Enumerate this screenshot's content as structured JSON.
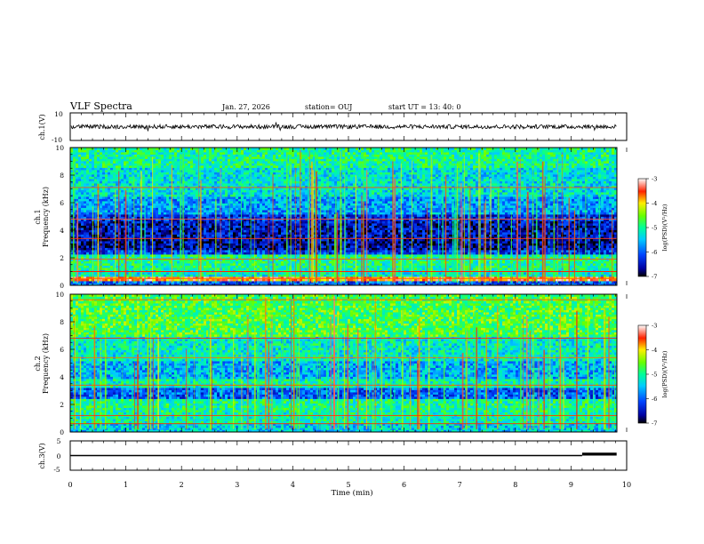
{
  "header": {
    "title": "VLF Spectra",
    "date": "Jan. 27, 2026",
    "station": "station= OUJ",
    "start": "start  UT  =   13: 40: 0"
  },
  "chart_data": [
    {
      "type": "line",
      "id": "ch1_waveform",
      "ylabel": "ch.1(V)",
      "ylim": [
        -10,
        10
      ],
      "yticks": [
        "10",
        "-10"
      ],
      "xlim": [
        0,
        10
      ],
      "series": [
        {
          "name": "ch.1",
          "mean": 0,
          "amplitude": 1.5
        }
      ]
    },
    {
      "type": "heatmap",
      "id": "ch1_spectrogram",
      "ylabel_channel": "ch.1",
      "ylabel": "Frequency (kHz)",
      "ylim": [
        0,
        10
      ],
      "yticks": [
        "0",
        "2",
        "4",
        "6",
        "8",
        "10"
      ],
      "xlim": [
        0,
        10
      ],
      "colorbar": {
        "label": "log(PSD)(V²/Hz)",
        "range": [
          -7,
          -3
        ],
        "ticks": [
          "-3",
          "-4",
          "-5",
          "-6",
          "-7"
        ]
      },
      "bands": [
        {
          "from": 0,
          "to": 0.3,
          "level": -6.0
        },
        {
          "from": 0.3,
          "to": 0.6,
          "level": -3.6
        },
        {
          "from": 0.6,
          "to": 1.2,
          "level": -5.2
        },
        {
          "from": 1.2,
          "to": 2.2,
          "level": -5.0
        },
        {
          "from": 2.2,
          "to": 2.6,
          "level": -6.2
        },
        {
          "from": 2.6,
          "to": 3.4,
          "level": -6.6
        },
        {
          "from": 3.4,
          "to": 4.6,
          "level": -6.5
        },
        {
          "from": 4.6,
          "to": 5.2,
          "level": -6.3
        },
        {
          "from": 5.2,
          "to": 6.5,
          "level": -5.7
        },
        {
          "from": 6.5,
          "to": 8.5,
          "level": -5.3
        },
        {
          "from": 8.5,
          "to": 10,
          "level": -5.0
        }
      ],
      "tone_lines_khz": [
        0.5,
        1.0,
        1.9,
        3.4,
        4.8,
        7.1
      ],
      "sferics": "vertical impulsive broadband streaks across full time range"
    },
    {
      "type": "heatmap",
      "id": "ch2_spectrogram",
      "ylabel_channel": "ch.2",
      "ylabel": "Frequency (kHz)",
      "ylim": [
        0,
        10
      ],
      "yticks": [
        "0",
        "2",
        "4",
        "6",
        "8",
        "10"
      ],
      "xlim": [
        0,
        10
      ],
      "colorbar": {
        "label": "log(PSD)(V²/Hz)",
        "range": [
          -7,
          -3
        ],
        "ticks": [
          "-3",
          "-4",
          "-5",
          "-6",
          "-7"
        ]
      },
      "bands": [
        {
          "from": 0,
          "to": 0.6,
          "level": -5.4
        },
        {
          "from": 0.6,
          "to": 1.4,
          "level": -5.1
        },
        {
          "from": 1.4,
          "to": 2.4,
          "level": -5.0
        },
        {
          "from": 2.4,
          "to": 3.2,
          "level": -6.0
        },
        {
          "from": 3.2,
          "to": 3.8,
          "level": -5.1
        },
        {
          "from": 3.8,
          "to": 5.2,
          "level": -5.6
        },
        {
          "from": 5.2,
          "to": 7.0,
          "level": -5.2
        },
        {
          "from": 7.0,
          "to": 10,
          "level": -4.7
        }
      ],
      "tone_lines_khz": [
        0.6,
        1.2,
        3.4,
        5.4,
        6.8,
        9.6
      ],
      "sferics": "vertical impulsive broadband streaks across full time range"
    },
    {
      "type": "line",
      "id": "ch3_level",
      "ylabel": "ch.3(V)",
      "ylim": [
        -5,
        5
      ],
      "yticks": [
        "5",
        "0",
        "-5"
      ],
      "xlim": [
        0,
        10
      ],
      "series": [
        {
          "name": "ch.3",
          "x": [
            0,
            9.2,
            9.2,
            9.82
          ],
          "y": [
            0,
            0,
            0.5,
            0.5
          ]
        }
      ]
    }
  ],
  "xaxis": {
    "label": "Time (min)",
    "ticks": [
      "0",
      "1",
      "2",
      "3",
      "4",
      "5",
      "6",
      "7",
      "8",
      "9",
      "10"
    ]
  }
}
